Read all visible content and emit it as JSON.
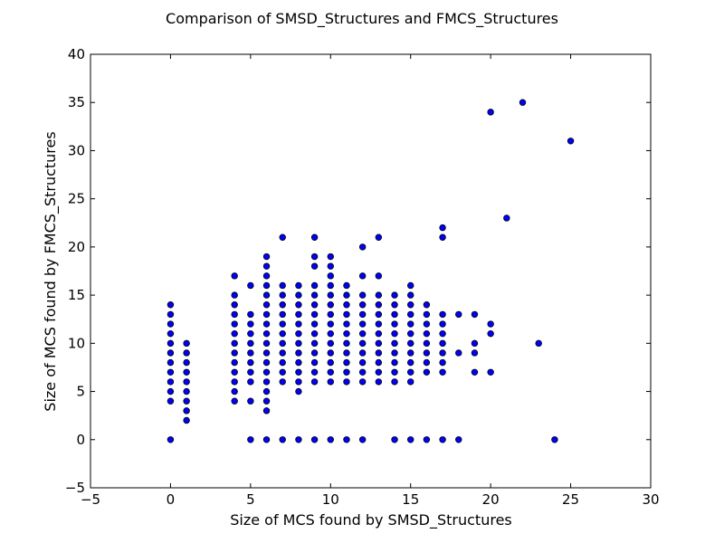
{
  "chart_data": {
    "type": "scatter",
    "title": "Comparison of SMSD_Structures and FMCS_Structures",
    "xlabel": "Size of MCS found by SMSD_Structures",
    "ylabel": "Size of MCS found by FMCS_Structures",
    "xlim": [
      -5,
      30
    ],
    "ylim": [
      -5,
      40
    ],
    "xticks": [
      "−5",
      "0",
      "5",
      "10",
      "15",
      "20",
      "25",
      "30"
    ],
    "yticks": [
      "−5",
      "0",
      "5",
      "10",
      "15",
      "20",
      "25",
      "30",
      "35",
      "40"
    ],
    "grid": false,
    "legend": "none",
    "marker_color": "#0000ff",
    "marker_edge_color": "#000000",
    "points": [
      [
        0,
        0
      ],
      [
        0,
        4
      ],
      [
        0,
        5
      ],
      [
        0,
        6
      ],
      [
        0,
        7
      ],
      [
        0,
        8
      ],
      [
        0,
        9
      ],
      [
        0,
        10
      ],
      [
        0,
        11
      ],
      [
        0,
        12
      ],
      [
        0,
        13
      ],
      [
        0,
        14
      ],
      [
        1,
        2
      ],
      [
        1,
        3
      ],
      [
        1,
        4
      ],
      [
        1,
        5
      ],
      [
        1,
        6
      ],
      [
        1,
        7
      ],
      [
        1,
        8
      ],
      [
        1,
        9
      ],
      [
        1,
        10
      ],
      [
        4,
        4
      ],
      [
        4,
        5
      ],
      [
        4,
        6
      ],
      [
        4,
        7
      ],
      [
        4,
        8
      ],
      [
        4,
        9
      ],
      [
        4,
        10
      ],
      [
        4,
        11
      ],
      [
        4,
        12
      ],
      [
        4,
        13
      ],
      [
        4,
        14
      ],
      [
        4,
        15
      ],
      [
        4,
        17
      ],
      [
        5,
        0
      ],
      [
        5,
        4
      ],
      [
        5,
        6
      ],
      [
        5,
        7
      ],
      [
        5,
        8
      ],
      [
        5,
        9
      ],
      [
        5,
        10
      ],
      [
        5,
        11
      ],
      [
        5,
        12
      ],
      [
        5,
        13
      ],
      [
        5,
        16
      ],
      [
        6,
        0
      ],
      [
        6,
        3
      ],
      [
        6,
        4
      ],
      [
        6,
        5
      ],
      [
        6,
        6
      ],
      [
        6,
        7
      ],
      [
        6,
        8
      ],
      [
        6,
        9
      ],
      [
        6,
        10
      ],
      [
        6,
        11
      ],
      [
        6,
        12
      ],
      [
        6,
        13
      ],
      [
        6,
        14
      ],
      [
        6,
        15
      ],
      [
        6,
        16
      ],
      [
        6,
        17
      ],
      [
        6,
        18
      ],
      [
        6,
        19
      ],
      [
        7,
        0
      ],
      [
        7,
        6
      ],
      [
        7,
        7
      ],
      [
        7,
        8
      ],
      [
        7,
        9
      ],
      [
        7,
        10
      ],
      [
        7,
        11
      ],
      [
        7,
        12
      ],
      [
        7,
        13
      ],
      [
        7,
        14
      ],
      [
        7,
        15
      ],
      [
        7,
        16
      ],
      [
        7,
        21
      ],
      [
        8,
        0
      ],
      [
        8,
        5
      ],
      [
        8,
        6
      ],
      [
        8,
        7
      ],
      [
        8,
        8
      ],
      [
        8,
        9
      ],
      [
        8,
        10
      ],
      [
        8,
        11
      ],
      [
        8,
        12
      ],
      [
        8,
        13
      ],
      [
        8,
        14
      ],
      [
        8,
        15
      ],
      [
        8,
        16
      ],
      [
        9,
        0
      ],
      [
        9,
        6
      ],
      [
        9,
        7
      ],
      [
        9,
        8
      ],
      [
        9,
        9
      ],
      [
        9,
        10
      ],
      [
        9,
        11
      ],
      [
        9,
        12
      ],
      [
        9,
        13
      ],
      [
        9,
        14
      ],
      [
        9,
        15
      ],
      [
        9,
        16
      ],
      [
        9,
        18
      ],
      [
        9,
        19
      ],
      [
        9,
        21
      ],
      [
        10,
        0
      ],
      [
        10,
        6
      ],
      [
        10,
        7
      ],
      [
        10,
        8
      ],
      [
        10,
        9
      ],
      [
        10,
        10
      ],
      [
        10,
        11
      ],
      [
        10,
        12
      ],
      [
        10,
        13
      ],
      [
        10,
        14
      ],
      [
        10,
        15
      ],
      [
        10,
        16
      ],
      [
        10,
        17
      ],
      [
        10,
        18
      ],
      [
        10,
        19
      ],
      [
        11,
        0
      ],
      [
        11,
        6
      ],
      [
        11,
        7
      ],
      [
        11,
        8
      ],
      [
        11,
        9
      ],
      [
        11,
        10
      ],
      [
        11,
        11
      ],
      [
        11,
        12
      ],
      [
        11,
        13
      ],
      [
        11,
        14
      ],
      [
        11,
        15
      ],
      [
        11,
        16
      ],
      [
        12,
        0
      ],
      [
        12,
        6
      ],
      [
        12,
        7
      ],
      [
        12,
        8
      ],
      [
        12,
        9
      ],
      [
        12,
        10
      ],
      [
        12,
        11
      ],
      [
        12,
        12
      ],
      [
        12,
        13
      ],
      [
        12,
        14
      ],
      [
        12,
        15
      ],
      [
        12,
        17
      ],
      [
        12,
        20
      ],
      [
        13,
        6
      ],
      [
        13,
        7
      ],
      [
        13,
        8
      ],
      [
        13,
        9
      ],
      [
        13,
        10
      ],
      [
        13,
        11
      ],
      [
        13,
        12
      ],
      [
        13,
        13
      ],
      [
        13,
        14
      ],
      [
        13,
        15
      ],
      [
        13,
        17
      ],
      [
        13,
        21
      ],
      [
        14,
        0
      ],
      [
        14,
        6
      ],
      [
        14,
        7
      ],
      [
        14,
        8
      ],
      [
        14,
        9
      ],
      [
        14,
        10
      ],
      [
        14,
        11
      ],
      [
        14,
        12
      ],
      [
        14,
        13
      ],
      [
        14,
        14
      ],
      [
        14,
        15
      ],
      [
        15,
        0
      ],
      [
        15,
        6
      ],
      [
        15,
        7
      ],
      [
        15,
        8
      ],
      [
        15,
        9
      ],
      [
        15,
        10
      ],
      [
        15,
        11
      ],
      [
        15,
        12
      ],
      [
        15,
        13
      ],
      [
        15,
        14
      ],
      [
        15,
        15
      ],
      [
        15,
        16
      ],
      [
        16,
        0
      ],
      [
        16,
        7
      ],
      [
        16,
        8
      ],
      [
        16,
        9
      ],
      [
        16,
        10
      ],
      [
        16,
        11
      ],
      [
        16,
        12
      ],
      [
        16,
        13
      ],
      [
        16,
        14
      ],
      [
        17,
        0
      ],
      [
        17,
        7
      ],
      [
        17,
        8
      ],
      [
        17,
        9
      ],
      [
        17,
        10
      ],
      [
        17,
        11
      ],
      [
        17,
        12
      ],
      [
        17,
        13
      ],
      [
        17,
        21
      ],
      [
        17,
        22
      ],
      [
        18,
        0
      ],
      [
        18,
        9
      ],
      [
        18,
        13
      ],
      [
        19,
        7
      ],
      [
        19,
        9
      ],
      [
        19,
        10
      ],
      [
        19,
        13
      ],
      [
        20,
        7
      ],
      [
        20,
        11
      ],
      [
        20,
        12
      ],
      [
        20,
        34
      ],
      [
        21,
        23
      ],
      [
        22,
        35
      ],
      [
        23,
        10
      ],
      [
        24,
        0
      ],
      [
        25,
        31
      ]
    ]
  }
}
